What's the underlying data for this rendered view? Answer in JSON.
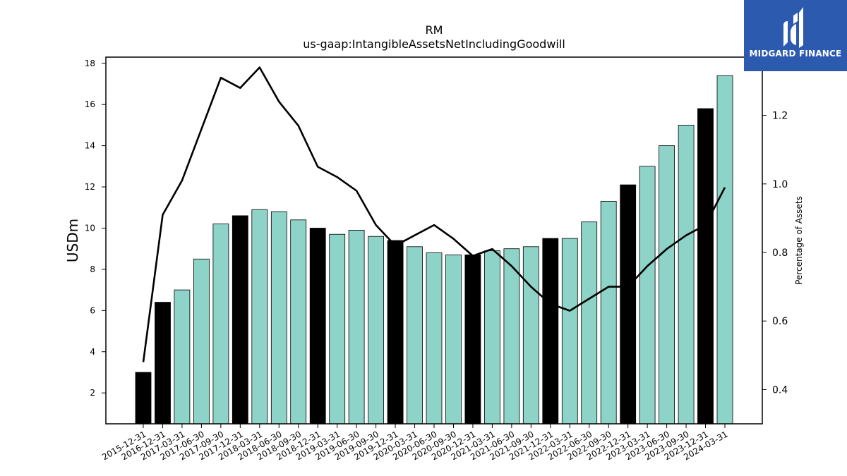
{
  "logo": {
    "text": "MIDGARD FINANCE"
  },
  "colors": {
    "bar_default": "#8dd3c7",
    "bar_highlight": "#000000",
    "line": "#000000",
    "logo_bg": "#2c5aae"
  },
  "chart_data": {
    "type": "bar",
    "title": "RM",
    "subtitle": "us-gaap:IntangibleAssetsNetIncludingGoodwill",
    "ylabel": "USDm",
    "y2label": "Percentage of Assets",
    "ylim": [
      0.5,
      18.3
    ],
    "y2lim": [
      0.3,
      1.37
    ],
    "yticks": [
      2,
      4,
      6,
      8,
      10,
      12,
      14,
      16,
      18
    ],
    "y2ticks": [
      0.4,
      0.6,
      0.8,
      1.0,
      1.2
    ],
    "y2ticklabels": [
      "0.4",
      "0.6",
      "0.8",
      "1.0",
      "1.2"
    ],
    "categories": [
      "2015-12-31",
      "2016-12-31",
      "2017-03-31",
      "2017-06-30",
      "2017-09-30",
      "2017-12-31",
      "2018-03-31",
      "2018-06-30",
      "2018-09-30",
      "2018-12-31",
      "2019-03-31",
      "2019-06-30",
      "2019-09-30",
      "2019-12-31",
      "2020-03-31",
      "2020-06-30",
      "2020-09-30",
      "2020-12-31",
      "2021-03-31",
      "2021-06-30",
      "2021-09-30",
      "2021-12-31",
      "2022-03-31",
      "2022-06-30",
      "2022-09-30",
      "2022-12-31",
      "2023-03-31",
      "2023-06-30",
      "2023-09-30",
      "2023-12-31",
      "2024-03-31"
    ],
    "series": [
      {
        "type": "bar",
        "values": [
          3.0,
          6.4,
          7.0,
          8.5,
          10.2,
          10.6,
          10.9,
          10.8,
          10.4,
          10.0,
          9.7,
          9.9,
          9.6,
          9.4,
          9.1,
          8.8,
          8.7,
          8.7,
          8.9,
          9.0,
          9.1,
          9.5,
          9.5,
          10.3,
          11.3,
          12.1,
          13.0,
          14.0,
          15.0,
          15.8,
          17.4
        ],
        "highlight": [
          true,
          true,
          false,
          false,
          false,
          true,
          false,
          false,
          false,
          true,
          false,
          false,
          false,
          true,
          false,
          false,
          false,
          true,
          false,
          false,
          false,
          true,
          false,
          false,
          false,
          true,
          false,
          false,
          false,
          true,
          false
        ]
      },
      {
        "type": "line",
        "axis": "right",
        "values": [
          0.48,
          0.91,
          1.01,
          1.16,
          1.31,
          1.28,
          1.34,
          1.24,
          1.17,
          1.05,
          1.02,
          0.98,
          0.88,
          0.82,
          0.85,
          0.88,
          0.84,
          0.79,
          0.81,
          0.76,
          0.7,
          0.65,
          0.63,
          0.665,
          0.7,
          0.7,
          0.76,
          0.81,
          0.85,
          0.88,
          0.99
        ]
      }
    ],
    "grid": false
  }
}
